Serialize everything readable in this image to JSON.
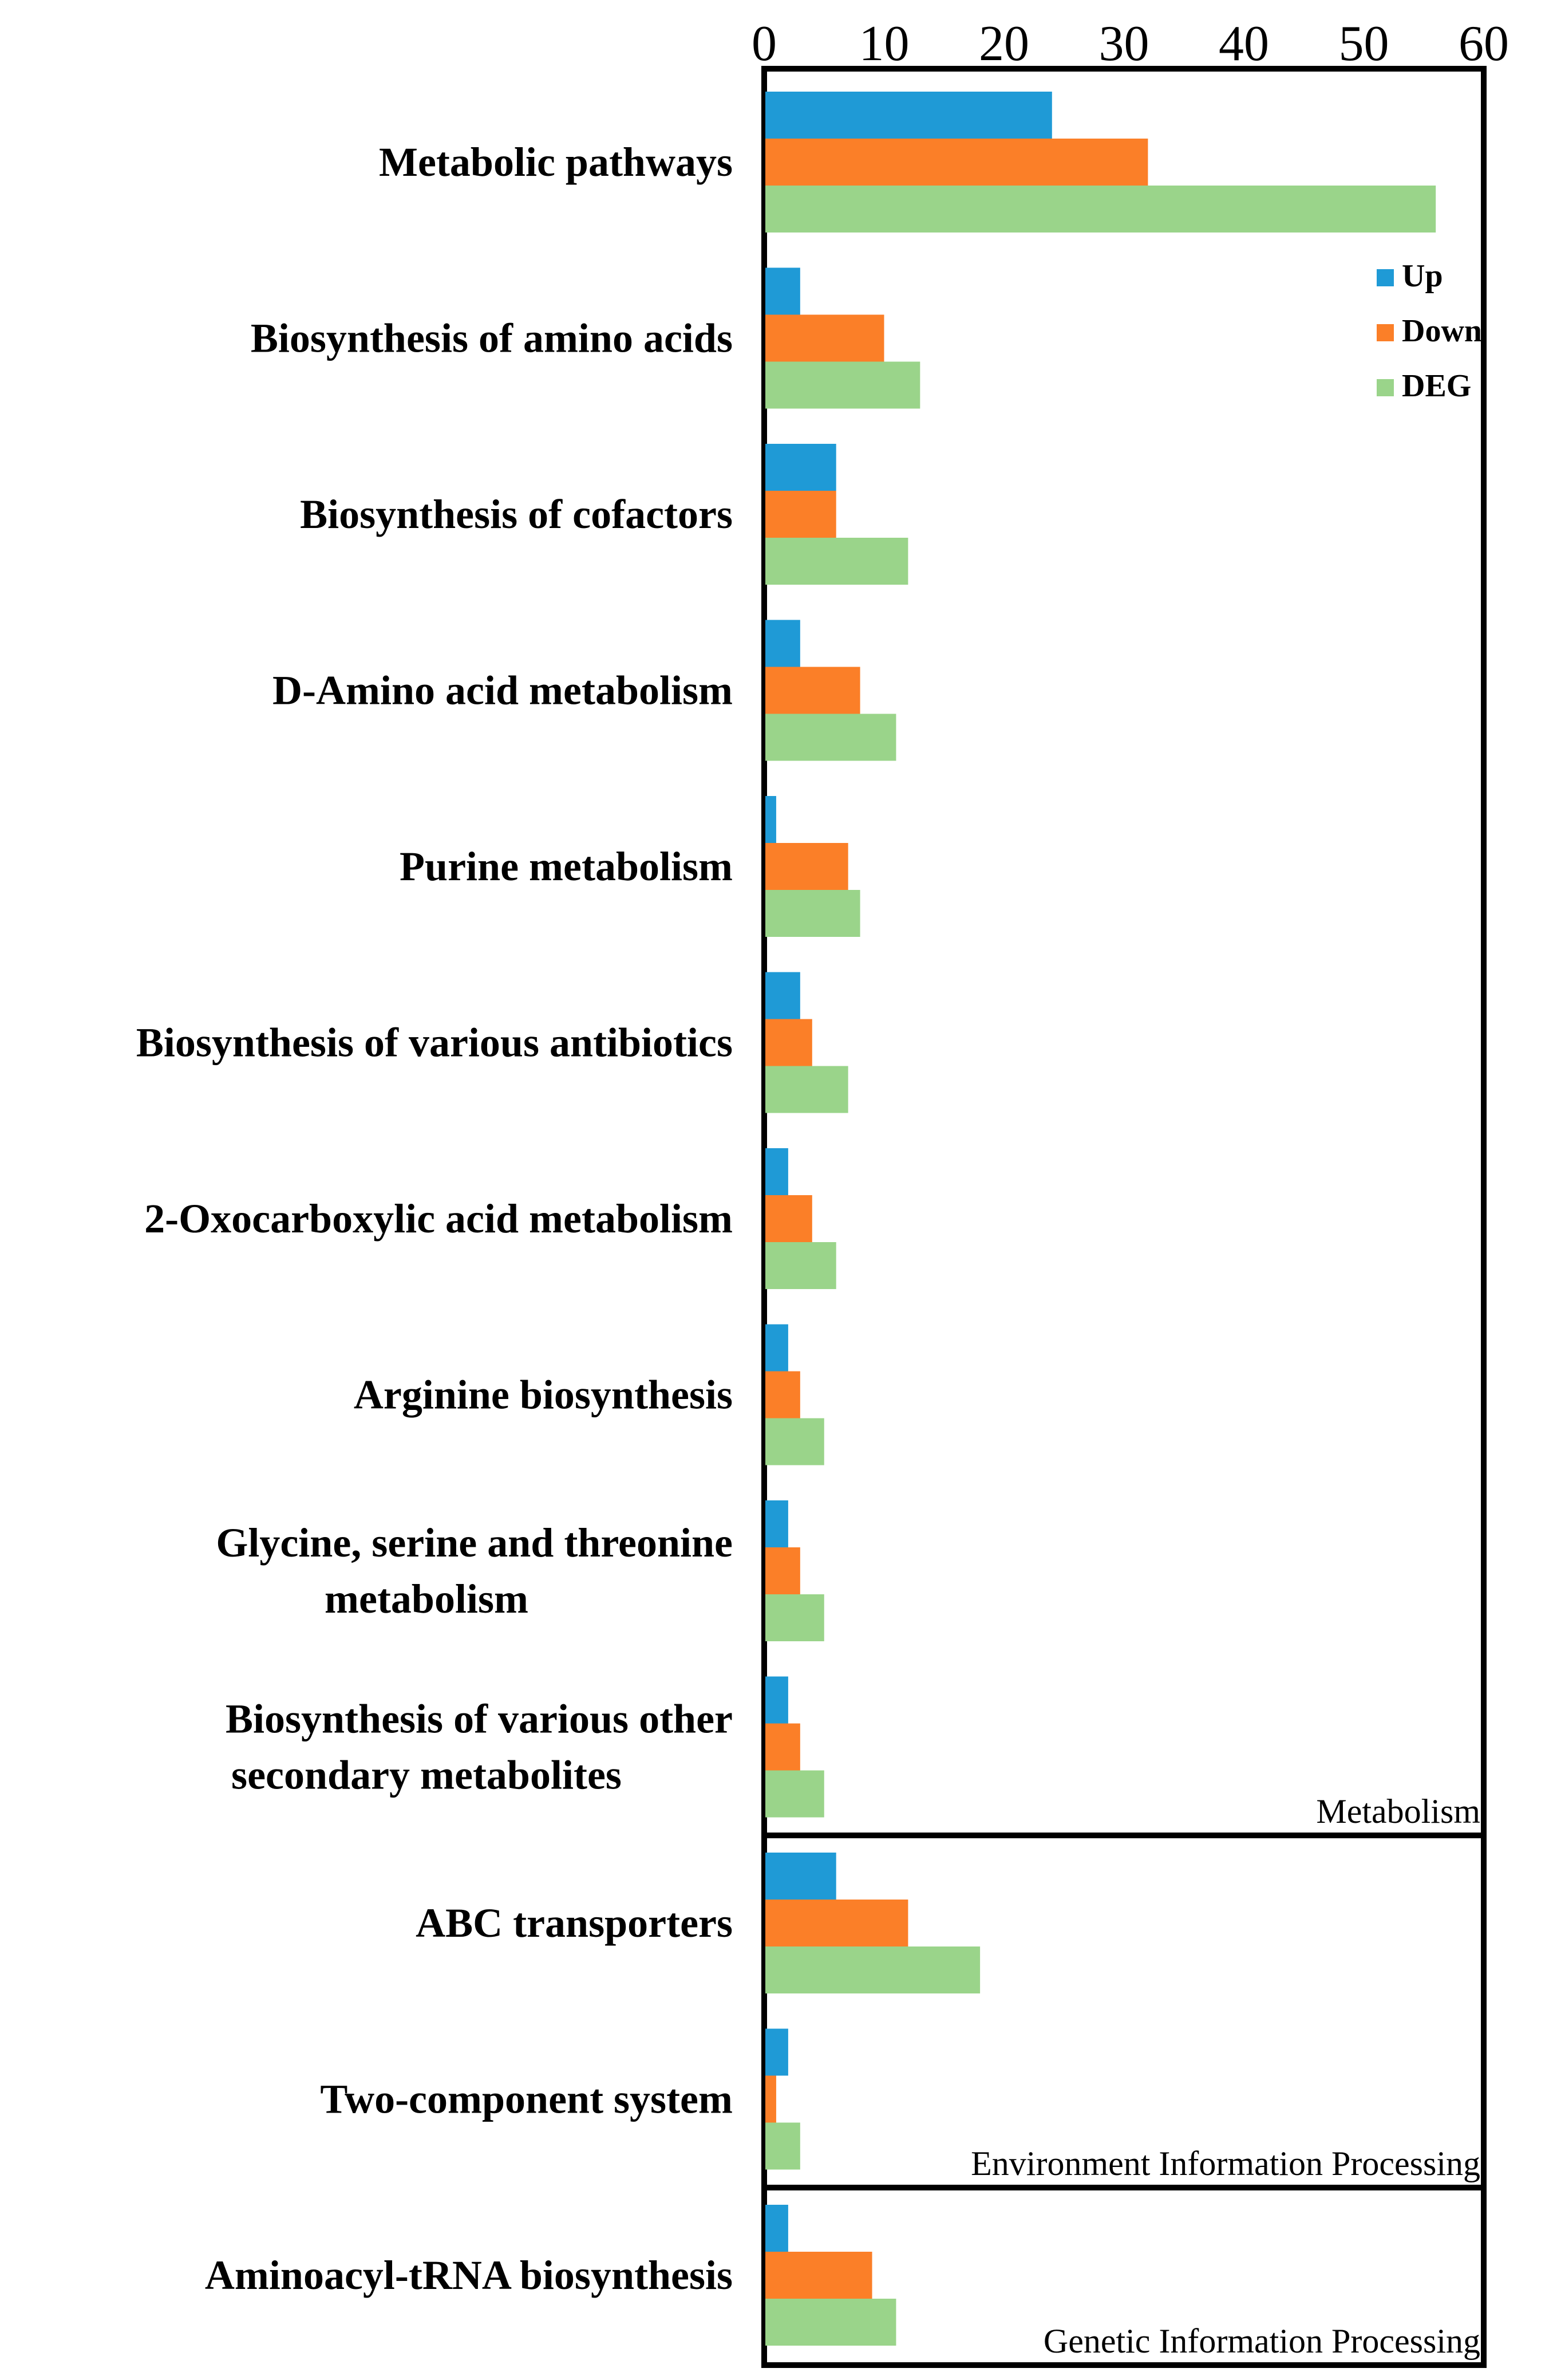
{
  "chart_data": {
    "type": "bar",
    "orientation": "horizontal",
    "title": "",
    "xlabel": "",
    "ylabel": "",
    "xlim": [
      0,
      60
    ],
    "x_ticks": [
      0,
      10,
      20,
      30,
      40,
      50,
      60
    ],
    "axis_position": "top",
    "grid": false,
    "legend_position": "top-right",
    "categories": [
      "Metabolic pathways",
      "Biosynthesis of amino acids",
      "Biosynthesis of cofactors",
      "D-Amino acid metabolism",
      "Purine metabolism",
      "Biosynthesis of various antibiotics",
      "2-Oxocarboxylic acid metabolism",
      "Arginine biosynthesis",
      "Glycine, serine and threonine metabolism",
      "Biosynthesis of various other secondary metabolites",
      "ABC transporters",
      "Two-component system",
      "Aminoacyl-tRNA biosynthesis"
    ],
    "category_lines": [
      [
        "Metabolic pathways"
      ],
      [
        "Biosynthesis of amino acids"
      ],
      [
        "Biosynthesis of cofactors"
      ],
      [
        "D-Amino acid metabolism"
      ],
      [
        "Purine metabolism"
      ],
      [
        "Biosynthesis of various antibiotics"
      ],
      [
        "2-Oxocarboxylic acid metabolism"
      ],
      [
        "Arginine biosynthesis"
      ],
      [
        "Glycine, serine and threonine",
        "metabolism"
      ],
      [
        "Biosynthesis of various other",
        "secondary metabolites"
      ],
      [
        "ABC transporters"
      ],
      [
        "Two-component system"
      ],
      [
        "Aminoacyl-tRNA biosynthesis"
      ]
    ],
    "series": [
      {
        "name": "Up",
        "color": "#1f9ad6",
        "values": [
          24,
          3,
          6,
          3,
          1,
          3,
          2,
          2,
          2,
          2,
          6,
          2,
          2
        ]
      },
      {
        "name": "Down",
        "color": "#fb7f28",
        "values": [
          32,
          10,
          6,
          8,
          7,
          4,
          4,
          3,
          3,
          3,
          12,
          1,
          9
        ]
      },
      {
        "name": "DEG",
        "color": "#9ad48a",
        "values": [
          56,
          13,
          12,
          11,
          8,
          7,
          6,
          5,
          5,
          5,
          18,
          3,
          11
        ]
      }
    ],
    "panels": [
      {
        "label": "Metabolism",
        "first_category": 0,
        "last_category": 9
      },
      {
        "label": "Environment Information Processing",
        "first_category": 10,
        "last_category": 11
      },
      {
        "label": "Genetic Information Processing",
        "first_category": 12,
        "last_category": 12
      }
    ]
  }
}
